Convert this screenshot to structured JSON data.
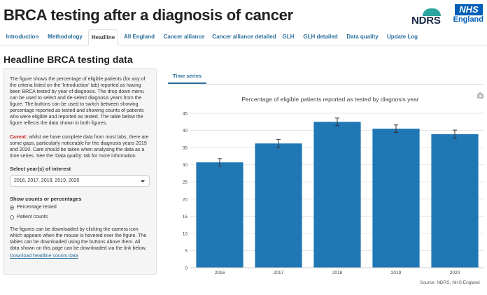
{
  "header": {
    "title": "BRCA testing after a diagnosis of cancer",
    "ndrs_logo": "NDRS",
    "nhs_logo": "NHS",
    "nhs_sub": "England"
  },
  "nav": {
    "tabs": [
      {
        "label": "Introduction",
        "active": false
      },
      {
        "label": "Methodology",
        "active": false
      },
      {
        "label": "Headline",
        "active": true
      },
      {
        "label": "All England",
        "active": false
      },
      {
        "label": "Cancer alliance",
        "active": false
      },
      {
        "label": "Cancer alliance detailed",
        "active": false
      },
      {
        "label": "GLH",
        "active": false
      },
      {
        "label": "GLH detailed",
        "active": false
      },
      {
        "label": "Data quality",
        "active": false
      },
      {
        "label": "Update Log",
        "active": false
      }
    ]
  },
  "page": {
    "title": "Headline BRCA testing data"
  },
  "sidebar": {
    "intro": "The figure shows the percentage of eligible patients (for any of the criteria listed on the 'Introduction' tab) reported as having been BRCA tested by year of diagnosis. The drop down menu can be used to select and de-select diagnosis years from the figure. The buttons can be used to switch between showing percentage reported as tested and showing counts of patients who were eligible and reported as tested. The table below the figure reflects the data shown in both figures.",
    "caveat_label": "Caveat:",
    "caveat": " whilst we have complete data from most labs, there are some gaps, particularly noticeable for the diagnosis years 2019 and 2020. Care should be taken when analysing the data as a time series. See the 'Data quality' tab for more information.",
    "years_label": "Select year(s) of interest",
    "years_value": "2016, 2017, 2018, 2019, 2020",
    "counts_label": "Show counts or percentages",
    "radio_percentage": "Percentage tested",
    "radio_counts": "Patient counts",
    "radio_selected": "percentage",
    "download_text": "The figures can be downloaded by clicking the camera icon which appears when the mouse is hovered over the figure. The tables can be downloaded using the buttons above them. All data shown on this page can be downloaded via the link below.",
    "download_link": "Download headline counts data"
  },
  "chart_tab": {
    "label": "Time series"
  },
  "chart_data": {
    "type": "bar",
    "title": "Percentage of eligible patients reported as tested by diagnosis year",
    "categories": [
      "2016",
      "2017",
      "2018",
      "2019",
      "2020"
    ],
    "values": [
      30.7,
      36.2,
      42.5,
      40.5,
      38.9
    ],
    "error_low": [
      29.6,
      35.0,
      41.4,
      39.4,
      37.7
    ],
    "error_high": [
      31.8,
      37.4,
      43.6,
      41.6,
      40.1
    ],
    "xlabel": "",
    "ylabel": "",
    "ylim": [
      0,
      45
    ],
    "yticks": [
      0,
      5,
      10,
      15,
      20,
      25,
      30,
      35,
      40,
      45
    ],
    "grid": true,
    "bar_color": "#1f77b4"
  },
  "source": "Source: NDRS, NHS England"
}
